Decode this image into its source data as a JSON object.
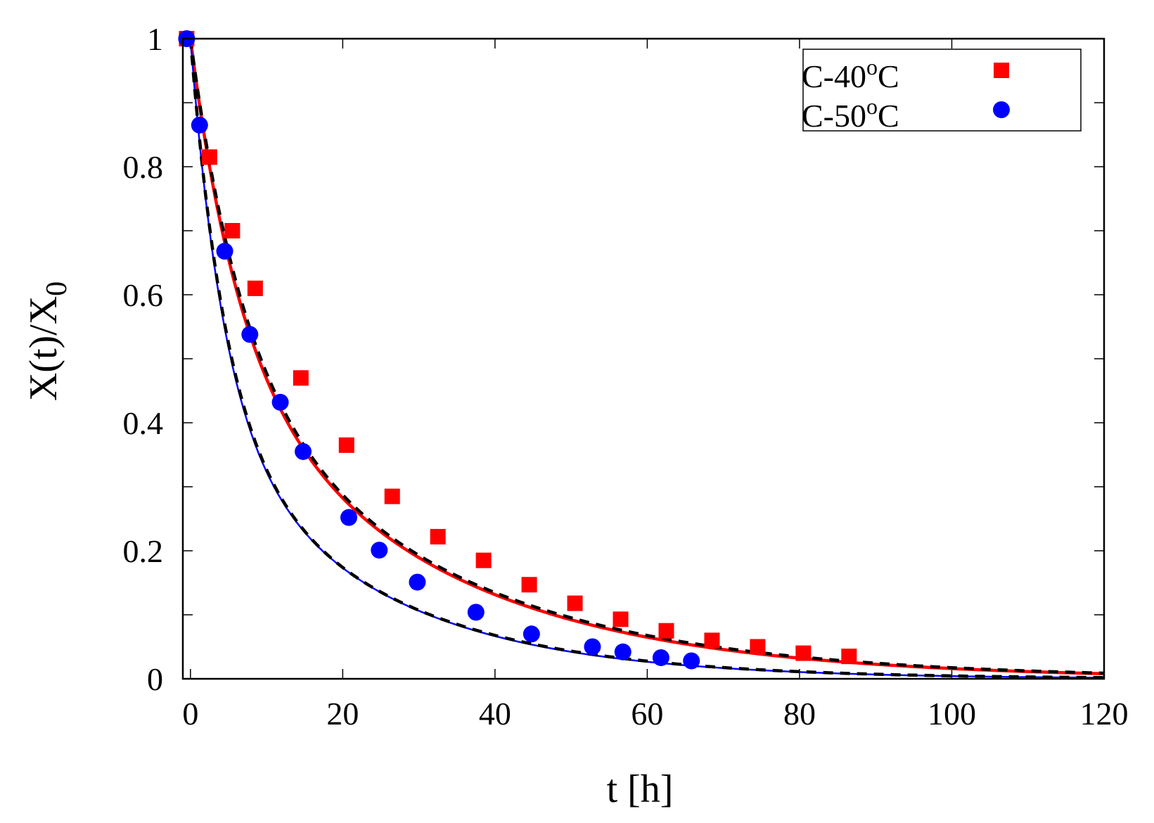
{
  "chart_data": {
    "type": "scatter",
    "title": "",
    "xlabel": "t [h]",
    "ylabel_main": "X(t)/X",
    "ylabel_sub": "0",
    "xlim": [
      -1,
      120
    ],
    "ylim": [
      0,
      1
    ],
    "x_ticks": [
      0,
      20,
      40,
      60,
      80,
      100,
      120
    ],
    "y_ticks": [
      0,
      0.2,
      0.4,
      0.6,
      0.8,
      1
    ],
    "y_tick_labels": [
      "0",
      "0.2",
      "0.4",
      "0.6",
      "0.8",
      "1"
    ],
    "minor_y_ticks": [
      0.1,
      0.3,
      0.5,
      0.7,
      0.9
    ],
    "legend_position": "top-right",
    "series": [
      {
        "name": "C-40",
        "name_sup": "o",
        "name_suffix": "C",
        "color": "#ff0000",
        "marker": "square",
        "x": [
          -0.5,
          2.5,
          5.5,
          8.5,
          14.5,
          20.5,
          26.5,
          32.5,
          38.5,
          44.5,
          50.5,
          56.5,
          62.5,
          68.5,
          74.5,
          80.5,
          86.5
        ],
        "y": [
          1.0,
          0.815,
          0.7,
          0.61,
          0.47,
          0.365,
          0.285,
          0.222,
          0.185,
          0.147,
          0.118,
          0.093,
          0.075,
          0.06,
          0.05,
          0.04,
          0.035
        ],
        "fit_curves": [
          {
            "style": "solid",
            "color": "#ff0000",
            "params": [
              0.53,
              0.035,
              0.47,
              0.16
            ]
          },
          {
            "style": "dashed",
            "color": "#000000",
            "params": [
              0.52,
              0.034,
              0.48,
              0.15
            ]
          }
        ]
      },
      {
        "name": "C-50",
        "name_sup": "o",
        "name_suffix": "C",
        "color": "#0000ff",
        "marker": "circle",
        "x": [
          -0.5,
          1.2,
          4.5,
          7.8,
          11.8,
          14.8,
          20.8,
          24.8,
          29.8,
          37.5,
          44.8,
          52.8,
          56.8,
          61.8,
          65.8
        ],
        "y": [
          1.0,
          0.865,
          0.668,
          0.538,
          0.432,
          0.355,
          0.252,
          0.201,
          0.151,
          0.104,
          0.07,
          0.05,
          0.042,
          0.033,
          0.028
        ],
        "fit_curves": [
          {
            "style": "solid",
            "color": "#0000ff",
            "params": [
              0.42,
              0.046,
              0.58,
              0.23
            ]
          },
          {
            "style": "dashed",
            "color": "#000000",
            "params": [
              0.41,
              0.045,
              0.59,
              0.22
            ]
          }
        ]
      }
    ]
  }
}
